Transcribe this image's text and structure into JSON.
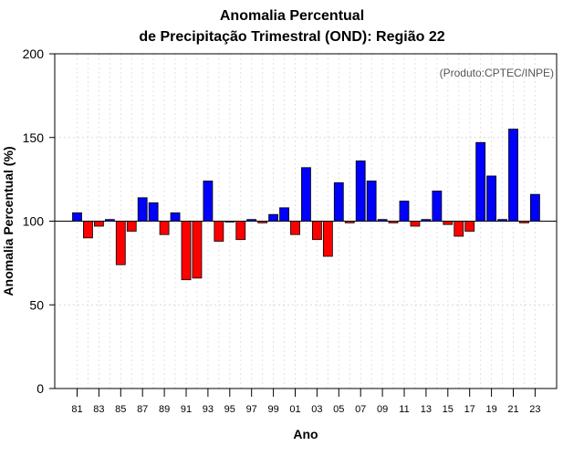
{
  "chart_data": {
    "type": "bar",
    "title": "Anomalia Percentual",
    "subtitle": "de Precipitação Trimestral (OND): Região 22",
    "source": "(Produto:CPTEC/INPE)",
    "xlabel": "Ano",
    "ylabel": "Anomalia Percentual (%)",
    "ylim": [
      0,
      200
    ],
    "yticks": [
      0,
      50,
      100,
      150,
      200
    ],
    "baseline": 100,
    "grid": true,
    "colors": {
      "above": "#0000ff",
      "below": "#ff0000"
    },
    "categories": [
      "81",
      "82",
      "83",
      "84",
      "85",
      "86",
      "87",
      "88",
      "89",
      "90",
      "91",
      "92",
      "93",
      "94",
      "95",
      "96",
      "97",
      "98",
      "99",
      "00",
      "01",
      "02",
      "03",
      "04",
      "05",
      "06",
      "07",
      "08",
      "09",
      "10",
      "11",
      "12",
      "13",
      "14",
      "15",
      "16",
      "17",
      "18",
      "19",
      "20",
      "21",
      "22",
      "23"
    ],
    "tick_labels": [
      "81",
      "83",
      "85",
      "87",
      "89",
      "91",
      "93",
      "95",
      "97",
      "99",
      "01",
      "03",
      "05",
      "07",
      "09",
      "11",
      "13",
      "15",
      "17",
      "19",
      "21",
      "23"
    ],
    "values": [
      105,
      90,
      97,
      101,
      74,
      94,
      114,
      111,
      92,
      105,
      65,
      66,
      124,
      88,
      100,
      89,
      101,
      99,
      104,
      108,
      92,
      132,
      89,
      79,
      123,
      99,
      136,
      124,
      101,
      99,
      112,
      97,
      101,
      118,
      98,
      91,
      94,
      147,
      127,
      101,
      155,
      99,
      116
    ]
  }
}
